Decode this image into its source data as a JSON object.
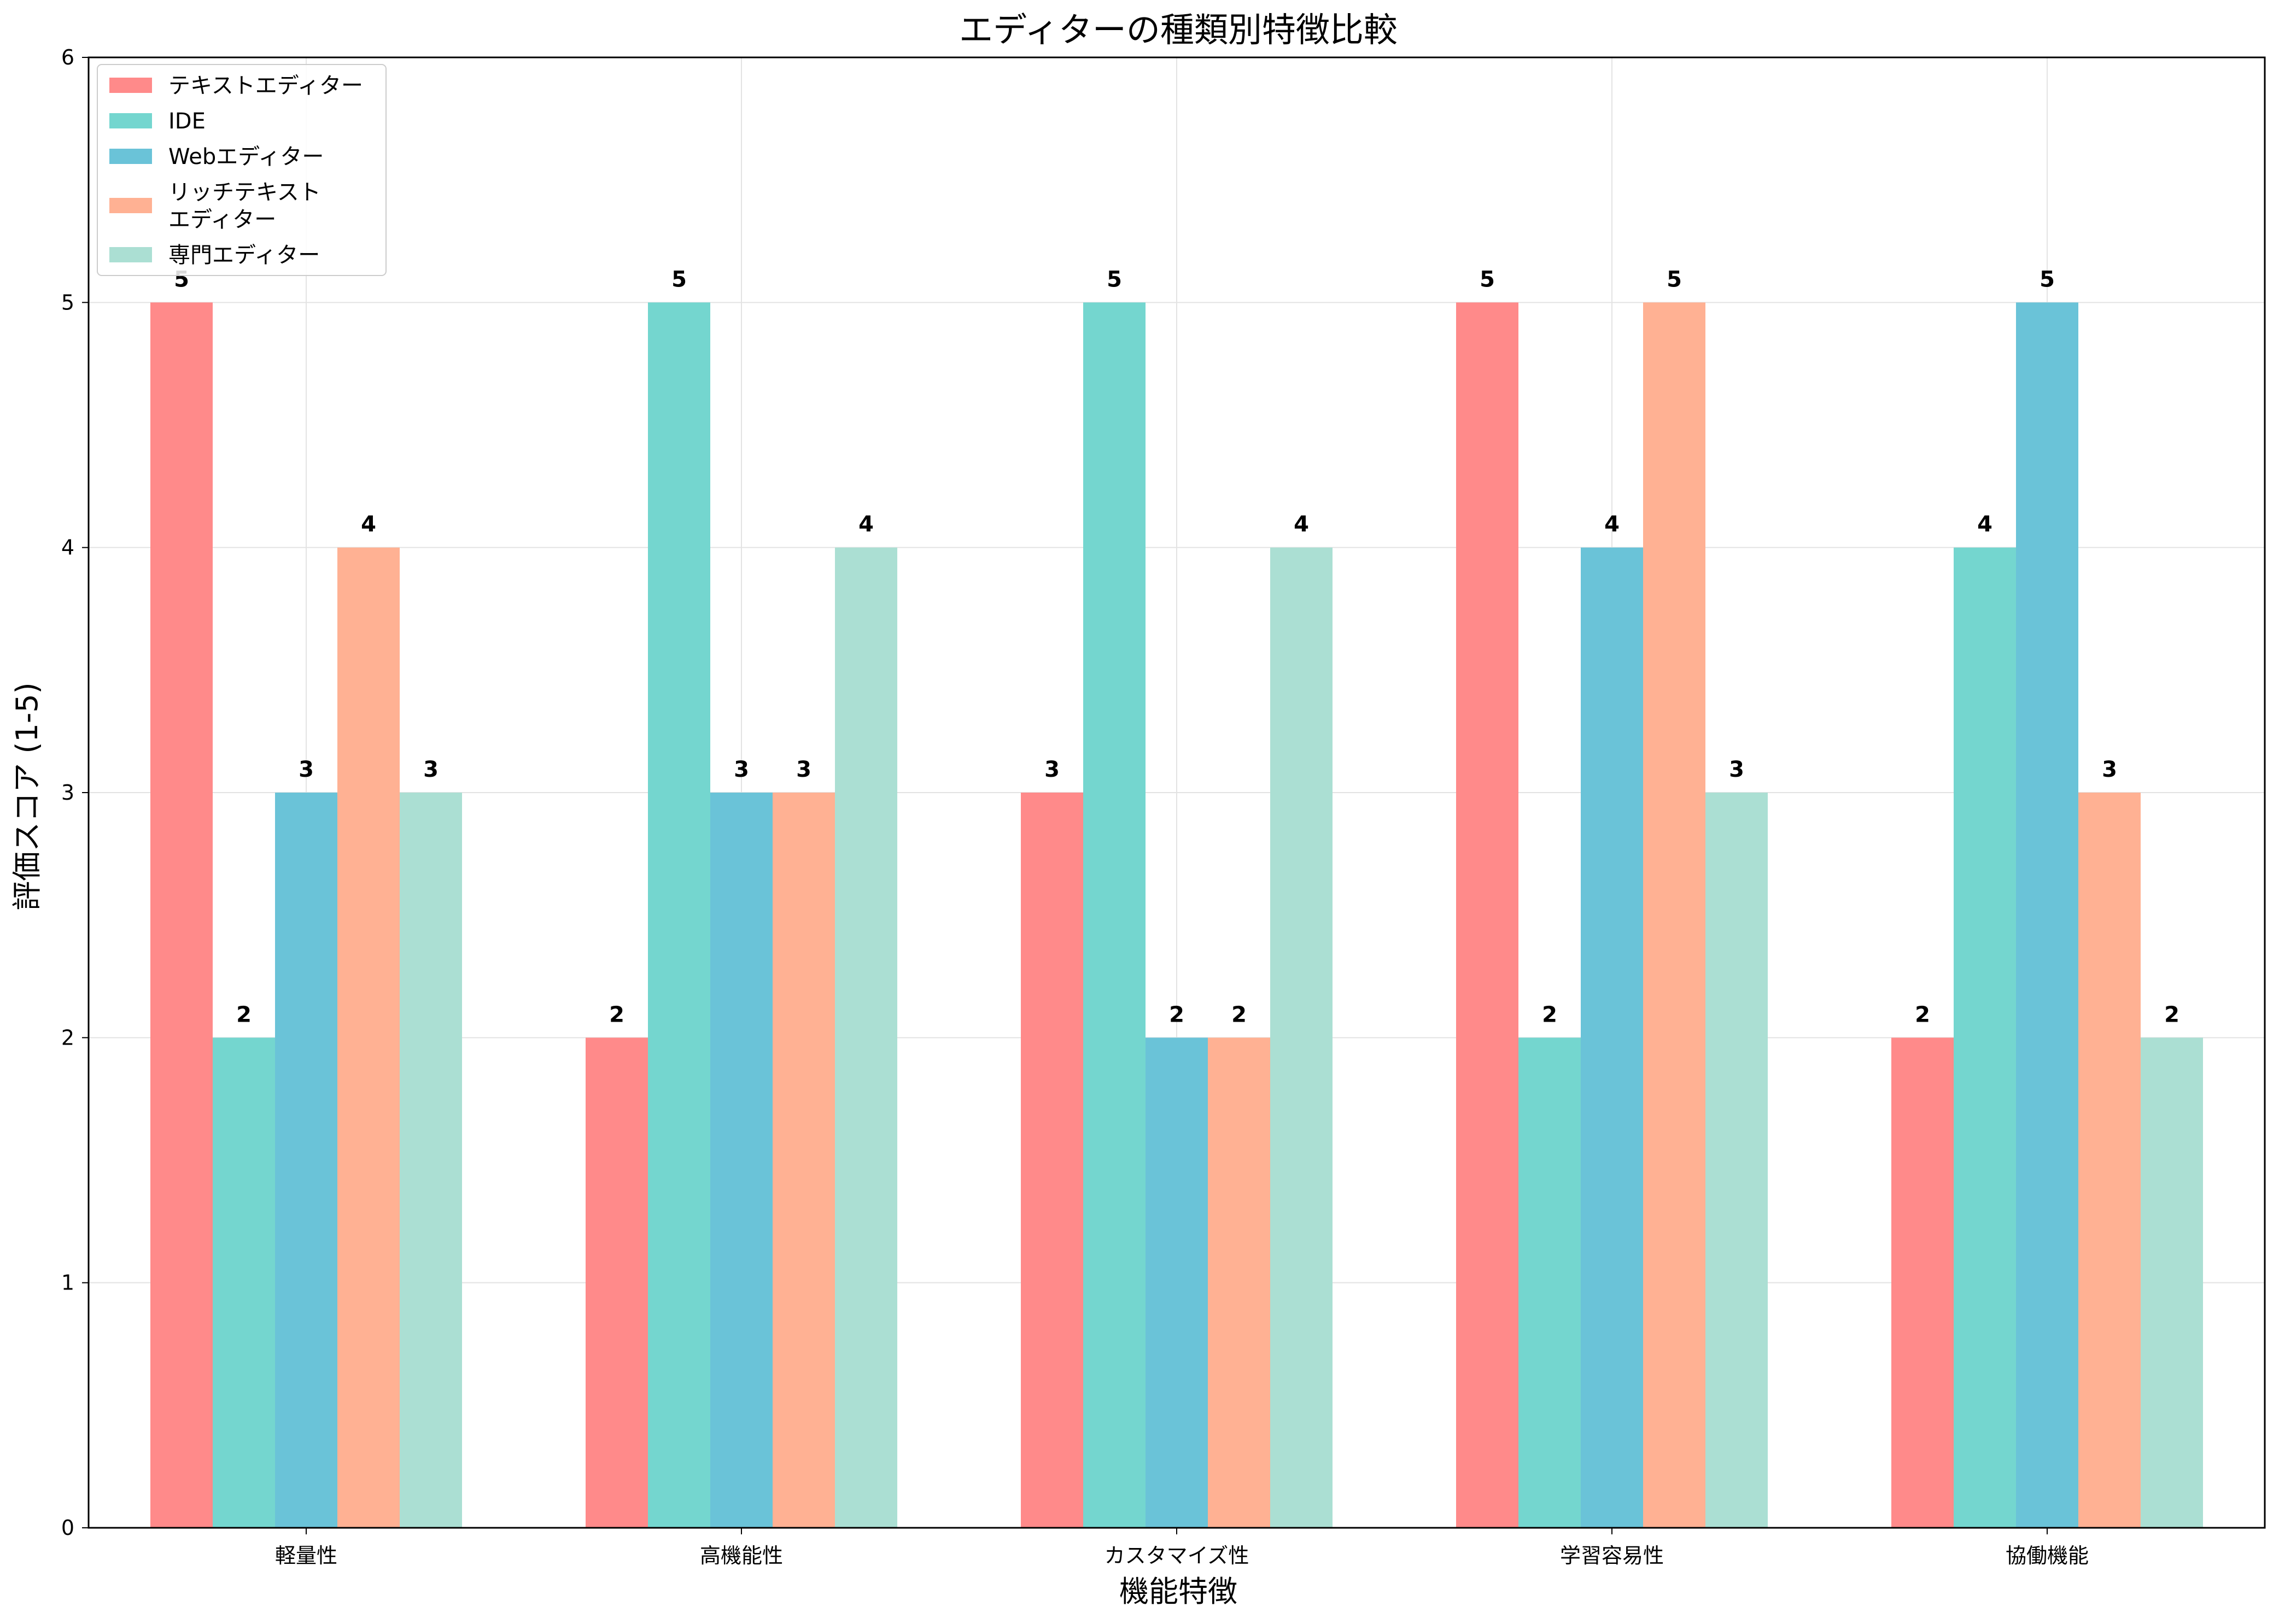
{
  "chart_data": {
    "type": "bar",
    "title": "エディターの種類別特徴比較",
    "xlabel": "機能特徴",
    "ylabel": "評価スコア (1-5)",
    "ylim": [
      0,
      6
    ],
    "yticks": [
      "0",
      "1",
      "2",
      "3",
      "4",
      "5",
      "6"
    ],
    "grid": true,
    "legend_position": "top-left",
    "categories": [
      "軽量性",
      "高機能性",
      "カスタマイズ性",
      "学習容易性",
      "協働機能"
    ],
    "series": [
      {
        "name": "テキストエディター",
        "legend_lines": [
          "テキストエディター"
        ],
        "color": "#FF8A8A",
        "values": [
          5,
          2,
          3,
          5,
          2
        ]
      },
      {
        "name": "IDE",
        "legend_lines": [
          "IDE"
        ],
        "color": "#74D6CF",
        "values": [
          2,
          5,
          5,
          2,
          4
        ]
      },
      {
        "name": "Webエディター",
        "legend_lines": [
          "Webエディター"
        ],
        "color": "#6AC3D8",
        "values": [
          3,
          3,
          2,
          4,
          5
        ]
      },
      {
        "name": "リッチテキストエディター",
        "legend_lines": [
          "リッチテキスト",
          "エディター"
        ],
        "color": "#FFB193",
        "values": [
          4,
          3,
          2,
          5,
          3
        ]
      },
      {
        "name": "専門エディター",
        "legend_lines": [
          "専門エディター"
        ],
        "color": "#ABDFD3",
        "values": [
          3,
          4,
          4,
          3,
          2
        ]
      }
    ]
  }
}
